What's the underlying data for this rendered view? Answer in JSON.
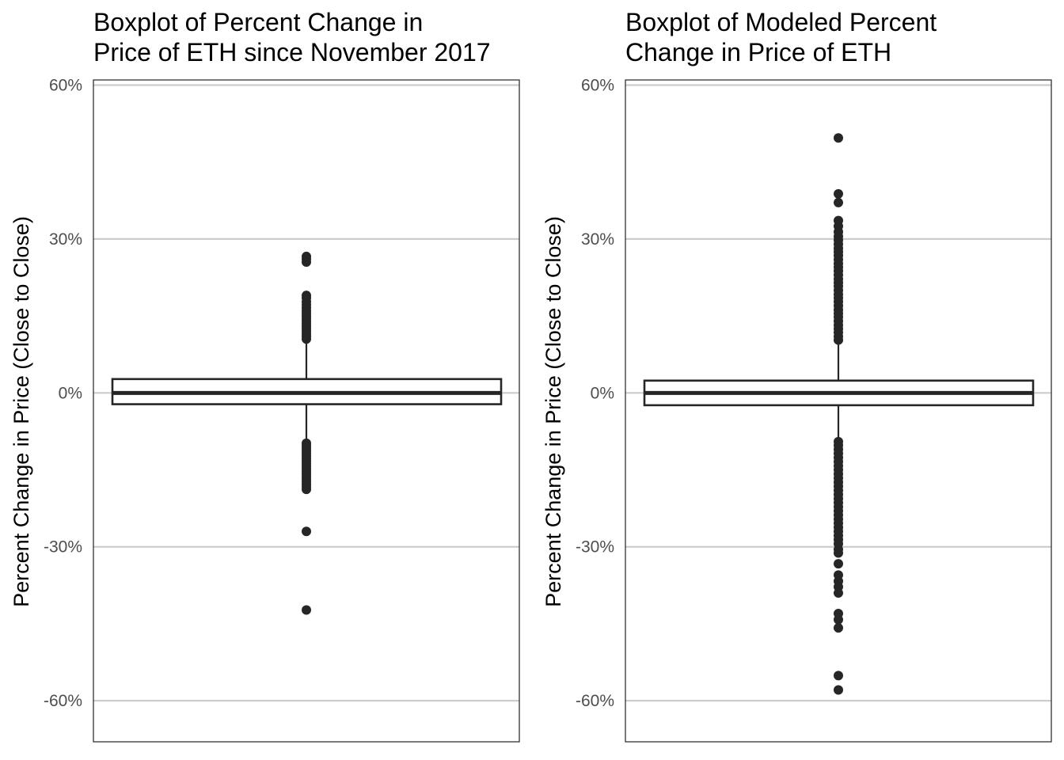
{
  "chart_data": [
    {
      "type": "boxplot",
      "title_lines": [
        "Boxplot of Percent Change in",
        "Price of ETH since November 2017"
      ],
      "xlabel": "",
      "ylabel": "Percent Change in Price (Close to Close)",
      "ylim": [
        -0.68,
        0.61
      ],
      "yticks": [
        0.6,
        0.3,
        0.0,
        -0.3,
        -0.6
      ],
      "ytick_labels": [
        "60%",
        "30%",
        "0%",
        "-30%",
        "-60%"
      ],
      "grid": "horizontal major",
      "box": {
        "q1": -0.022,
        "median": 0.0,
        "q3": 0.027,
        "whisker_low": -0.095,
        "whisker_high": 0.104
      },
      "outliers": [
        0.266,
        0.261,
        0.255,
        0.19,
        0.185,
        0.178,
        0.172,
        0.166,
        0.16,
        0.155,
        0.15,
        0.145,
        0.14,
        0.135,
        0.13,
        0.125,
        0.12,
        0.115,
        0.11,
        0.105,
        -0.098,
        -0.103,
        -0.108,
        -0.113,
        -0.118,
        -0.123,
        -0.128,
        -0.133,
        -0.138,
        -0.143,
        -0.148,
        -0.153,
        -0.158,
        -0.163,
        -0.168,
        -0.173,
        -0.178,
        -0.183,
        -0.188,
        -0.27,
        -0.423
      ]
    },
    {
      "type": "boxplot",
      "title_lines": [
        "Boxplot of Modeled Percent",
        "Change in Price of ETH"
      ],
      "xlabel": "",
      "ylabel": "Percent Change in Price (Close to Close)",
      "ylim": [
        -0.68,
        0.61
      ],
      "yticks": [
        0.6,
        0.3,
        0.0,
        -0.3,
        -0.6
      ],
      "ytick_labels": [
        "60%",
        "30%",
        "0%",
        "-30%",
        "-60%"
      ],
      "grid": "horizontal major",
      "box": {
        "q1": -0.024,
        "median": 0.0,
        "q3": 0.024,
        "whisker_low": -0.093,
        "whisker_high": 0.097
      },
      "outliers": [
        0.497,
        0.388,
        0.371,
        0.336,
        0.325,
        0.314,
        0.305,
        0.298,
        0.29,
        0.282,
        0.275,
        0.268,
        0.26,
        0.252,
        0.245,
        0.238,
        0.23,
        0.222,
        0.215,
        0.208,
        0.2,
        0.192,
        0.185,
        0.178,
        0.17,
        0.162,
        0.155,
        0.148,
        0.14,
        0.132,
        0.125,
        0.118,
        0.11,
        0.103,
        -0.095,
        -0.102,
        -0.11,
        -0.118,
        -0.126,
        -0.134,
        -0.142,
        -0.15,
        -0.158,
        -0.166,
        -0.174,
        -0.182,
        -0.19,
        -0.198,
        -0.206,
        -0.214,
        -0.222,
        -0.23,
        -0.238,
        -0.246,
        -0.254,
        -0.262,
        -0.27,
        -0.278,
        -0.286,
        -0.294,
        -0.305,
        -0.312,
        -0.333,
        -0.355,
        -0.367,
        -0.378,
        -0.39,
        -0.43,
        -0.442,
        -0.458,
        -0.551,
        -0.579
      ]
    }
  ]
}
